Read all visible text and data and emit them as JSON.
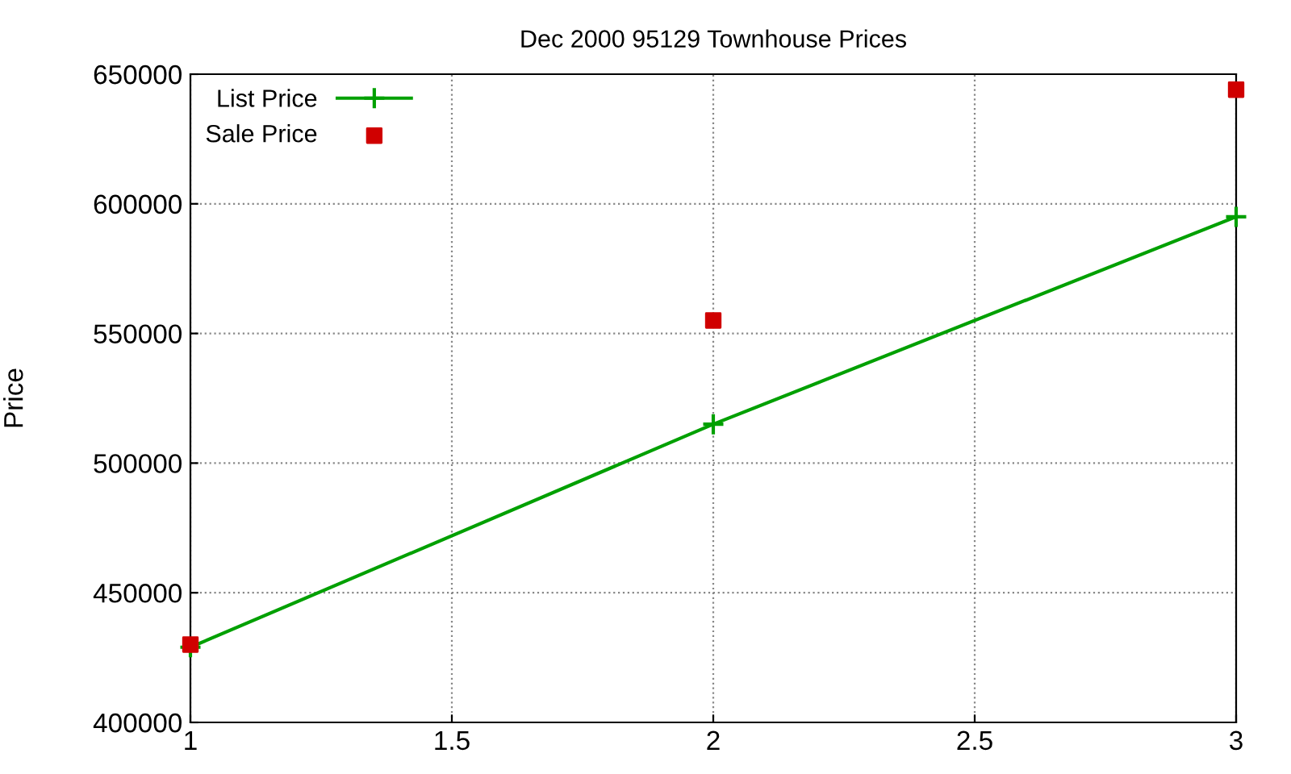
{
  "chart_data": {
    "type": "line",
    "title": "Dec 2000 95129 Townhouse Prices",
    "ylabel": "Price",
    "x": [
      1,
      2,
      3
    ],
    "series": [
      {
        "name": "List Price",
        "color": "#00a000",
        "marker": "cross",
        "values": [
          429000,
          515000,
          595000
        ]
      },
      {
        "name": "Sale Price",
        "type": "scatter",
        "color": "#d00000",
        "marker": "square",
        "values": [
          430000,
          555000,
          644000
        ]
      }
    ],
    "xlim": [
      1,
      3
    ],
    "xticks": [
      1,
      1.5,
      2,
      2.5,
      3
    ],
    "ylim": [
      400000,
      650000
    ],
    "yticks": [
      400000,
      450000,
      500000,
      550000,
      600000,
      650000
    ],
    "grid": true,
    "legend": "top left",
    "line_style": "solid"
  }
}
